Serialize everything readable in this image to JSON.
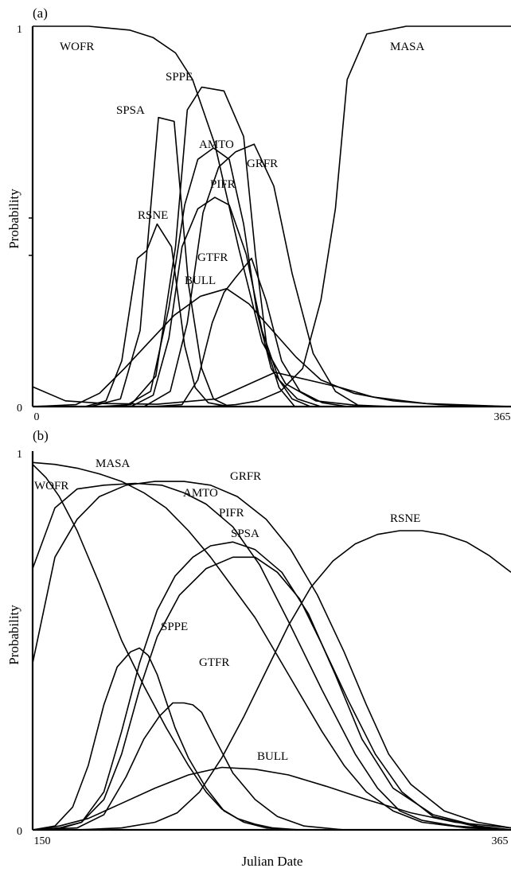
{
  "figure": {
    "ylabel": "Probability",
    "xlabel": "Julian Date"
  },
  "chart_data": [
    {
      "type": "line",
      "panel_label": "(a)",
      "ylabel": "Probability",
      "xlabel": "",
      "xlim": [
        0,
        365
      ],
      "ylim": [
        0,
        1
      ],
      "x_tick_labels": [
        "0",
        "365"
      ],
      "y_tick_labels": [
        "0",
        "1"
      ],
      "series": [
        {
          "name": "WOFR",
          "x": [
            0,
            43,
            74,
            92,
            109,
            122,
            139,
            157,
            175,
            193,
            216,
            245,
            274,
            320,
            365
          ],
          "y": [
            1.0,
            1.0,
            0.99,
            0.97,
            0.93,
            0.86,
            0.69,
            0.42,
            0.17,
            0.06,
            0.015,
            0.004,
            0.0,
            0.0,
            0.0
          ]
        },
        {
          "name": "MASA",
          "x": [
            0,
            81,
            135,
            155,
            172,
            189,
            206,
            220,
            231,
            240,
            255,
            285,
            320,
            365
          ],
          "y": [
            0.0,
            0.0,
            0.0,
            0.005,
            0.015,
            0.04,
            0.1,
            0.28,
            0.52,
            0.86,
            0.98,
            1.0,
            1.0,
            1.0
          ]
        },
        {
          "name": "SPPE",
          "x": [
            0,
            52,
            75,
            94,
            109,
            118,
            129,
            146,
            161,
            170,
            179,
            188,
            200,
            365
          ],
          "y": [
            0.0,
            0.0,
            0.005,
            0.08,
            0.42,
            0.78,
            0.84,
            0.83,
            0.71,
            0.4,
            0.15,
            0.05,
            0.0,
            0.0
          ]
        },
        {
          "name": "SPSA",
          "x": [
            0,
            44,
            67,
            82,
            96,
            108,
            119,
            129,
            138,
            150,
            365
          ],
          "y": [
            0.0,
            0.0,
            0.02,
            0.2,
            0.76,
            0.75,
            0.32,
            0.1,
            0.02,
            0.0,
            0.0
          ]
        },
        {
          "name": "RSNE",
          "x": [
            0,
            40,
            56,
            68,
            80,
            87,
            95,
            106,
            116,
            124,
            134,
            150,
            365
          ],
          "y": [
            0.0,
            0.0,
            0.015,
            0.12,
            0.39,
            0.41,
            0.48,
            0.42,
            0.16,
            0.05,
            0.01,
            0.0,
            0.0
          ]
        },
        {
          "name": "AMTO",
          "x": [
            0,
            70,
            90,
            104,
            116,
            126,
            138,
            150,
            161,
            171,
            182,
            198,
            212,
            365
          ],
          "y": [
            0.0,
            0.0,
            0.04,
            0.26,
            0.53,
            0.65,
            0.68,
            0.65,
            0.48,
            0.25,
            0.1,
            0.02,
            0.0,
            0.0
          ]
        },
        {
          "name": "GRFR",
          "x": [
            0,
            85,
            105,
            118,
            130,
            142,
            155,
            169,
            184,
            198,
            214,
            231,
            250,
            365
          ],
          "y": [
            0.0,
            0.0,
            0.04,
            0.22,
            0.51,
            0.63,
            0.67,
            0.69,
            0.58,
            0.35,
            0.14,
            0.04,
            0.0,
            0.0
          ]
        },
        {
          "name": "PIFR",
          "x": [
            0,
            75,
            92,
            104,
            114,
            126,
            139,
            150,
            163,
            175,
            188,
            202,
            220,
            365
          ],
          "y": [
            0.0,
            0.0,
            0.03,
            0.18,
            0.42,
            0.52,
            0.55,
            0.53,
            0.4,
            0.2,
            0.07,
            0.02,
            0.0,
            0.0
          ]
        },
        {
          "name": "GTFR",
          "x": [
            0,
            92,
            114,
            126,
            137,
            146,
            155,
            167,
            178,
            190,
            204,
            221,
            240,
            365
          ],
          "y": [
            0.0,
            0.0,
            0.005,
            0.07,
            0.22,
            0.3,
            0.34,
            0.39,
            0.28,
            0.12,
            0.04,
            0.01,
            0.0,
            0.0
          ]
        },
        {
          "name": "BULL",
          "x": [
            0,
            33,
            51,
            70,
            89,
            108,
            128,
            148,
            165,
            183,
            201,
            220,
            245,
            275,
            310,
            345,
            365
          ],
          "y": [
            0.0,
            0.005,
            0.035,
            0.1,
            0.17,
            0.24,
            0.29,
            0.31,
            0.27,
            0.2,
            0.13,
            0.07,
            0.035,
            0.015,
            0.005,
            0.0,
            0.0
          ]
        },
        {
          "name": "",
          "x": [
            0,
            25,
            55,
            95,
            140,
            185,
            235,
            260,
            300,
            365
          ],
          "y": [
            0.052,
            0.015,
            0.008,
            0.006,
            0.02,
            0.09,
            0.05,
            0.025,
            0.008,
            0.0
          ]
        }
      ]
    },
    {
      "type": "line",
      "panel_label": "(b)",
      "ylabel": "Probability",
      "xlabel": "Julian Date",
      "xlim": [
        150,
        365
      ],
      "ylim": [
        0,
        1
      ],
      "x_tick_labels": [
        "150",
        "365"
      ],
      "y_tick_labels": [
        "0",
        "1"
      ],
      "series": [
        {
          "name": "WOFR",
          "x": [
            150,
            156,
            162,
            170,
            180,
            190,
            200,
            210,
            220,
            228,
            235,
            242,
            250,
            258,
            270,
            285,
            300,
            320,
            365
          ],
          "y": [
            0.965,
            0.93,
            0.88,
            0.79,
            0.65,
            0.5,
            0.38,
            0.27,
            0.17,
            0.1,
            0.055,
            0.03,
            0.015,
            0.005,
            0.0,
            0.0,
            0.0,
            0.0,
            0.0
          ]
        },
        {
          "name": "MASA",
          "x": [
            150,
            160,
            170,
            180,
            190,
            200,
            210,
            220,
            230,
            240,
            250,
            260,
            270,
            280,
            290,
            300,
            312,
            325,
            345,
            365
          ],
          "y": [
            0.97,
            0.965,
            0.955,
            0.94,
            0.92,
            0.89,
            0.85,
            0.79,
            0.72,
            0.64,
            0.56,
            0.46,
            0.36,
            0.26,
            0.17,
            0.1,
            0.05,
            0.02,
            0.005,
            0.0
          ]
        },
        {
          "name": "AMTO",
          "x": [
            150,
            160,
            170,
            182,
            196,
            208,
            218,
            228,
            240,
            252,
            265,
            280,
            295,
            305,
            315,
            325,
            340,
            365
          ],
          "y": [
            0.69,
            0.85,
            0.9,
            0.91,
            0.915,
            0.91,
            0.89,
            0.86,
            0.8,
            0.7,
            0.55,
            0.37,
            0.2,
            0.11,
            0.05,
            0.025,
            0.01,
            0.0
          ]
        },
        {
          "name": "GRFR",
          "x": [
            150,
            160,
            170,
            180,
            192,
            205,
            218,
            230,
            242,
            255,
            266,
            278,
            290,
            300,
            310,
            320,
            335,
            350,
            365
          ],
          "y": [
            0.44,
            0.72,
            0.82,
            0.88,
            0.91,
            0.92,
            0.92,
            0.91,
            0.88,
            0.82,
            0.74,
            0.62,
            0.47,
            0.33,
            0.2,
            0.12,
            0.05,
            0.02,
            0.005
          ]
        },
        {
          "name": "PIFR",
          "x": [
            150,
            162,
            172,
            182,
            190,
            198,
            206,
            214,
            222,
            230,
            240,
            250,
            262,
            274,
            286,
            298,
            312,
            330,
            350,
            365
          ],
          "y": [
            0.0,
            0.005,
            0.02,
            0.1,
            0.26,
            0.44,
            0.58,
            0.67,
            0.72,
            0.75,
            0.76,
            0.74,
            0.68,
            0.57,
            0.41,
            0.24,
            0.11,
            0.04,
            0.01,
            0.0
          ]
        },
        {
          "name": "SPSA",
          "x": [
            150,
            162,
            172,
            182,
            190,
            198,
            206,
            216,
            228,
            240,
            250,
            260,
            270,
            280,
            292,
            304,
            316,
            330,
            350,
            365
          ],
          "y": [
            0.0,
            0.003,
            0.02,
            0.08,
            0.2,
            0.37,
            0.51,
            0.62,
            0.69,
            0.72,
            0.72,
            0.68,
            0.61,
            0.49,
            0.34,
            0.2,
            0.1,
            0.035,
            0.008,
            0.0
          ]
        },
        {
          "name": "SPPE",
          "x": [
            150,
            160,
            168,
            175,
            182,
            188,
            194,
            198,
            202,
            206,
            210,
            214,
            220,
            228,
            236,
            245,
            255,
            265,
            365
          ],
          "y": [
            0.0,
            0.01,
            0.06,
            0.17,
            0.33,
            0.43,
            0.47,
            0.48,
            0.46,
            0.41,
            0.34,
            0.27,
            0.19,
            0.11,
            0.05,
            0.02,
            0.005,
            0.0,
            0.0
          ]
        },
        {
          "name": "GTFR",
          "x": [
            150,
            170,
            182,
            192,
            200,
            207,
            213,
            218,
            222,
            226,
            232,
            240,
            250,
            260,
            272,
            290,
            365
          ],
          "y": [
            0.0,
            0.005,
            0.04,
            0.14,
            0.24,
            0.3,
            0.335,
            0.335,
            0.33,
            0.31,
            0.24,
            0.15,
            0.08,
            0.035,
            0.01,
            0.0,
            0.0
          ]
        },
        {
          "name": "BULL",
          "x": [
            150,
            162,
            175,
            190,
            205,
            220,
            235,
            250,
            265,
            282,
            300,
            320,
            340,
            365
          ],
          "y": [
            0.0,
            0.01,
            0.03,
            0.07,
            0.11,
            0.145,
            0.165,
            0.16,
            0.145,
            0.115,
            0.08,
            0.045,
            0.02,
            0.005
          ]
        },
        {
          "name": "RSNE",
          "x": [
            150,
            170,
            190,
            205,
            215,
            225,
            235,
            245,
            255,
            265,
            275,
            285,
            295,
            305,
            315,
            325,
            335,
            345,
            355,
            365
          ],
          "y": [
            0.0,
            0.0,
            0.005,
            0.02,
            0.045,
            0.1,
            0.19,
            0.3,
            0.42,
            0.54,
            0.64,
            0.71,
            0.755,
            0.78,
            0.79,
            0.79,
            0.78,
            0.76,
            0.725,
            0.68
          ]
        }
      ]
    }
  ]
}
